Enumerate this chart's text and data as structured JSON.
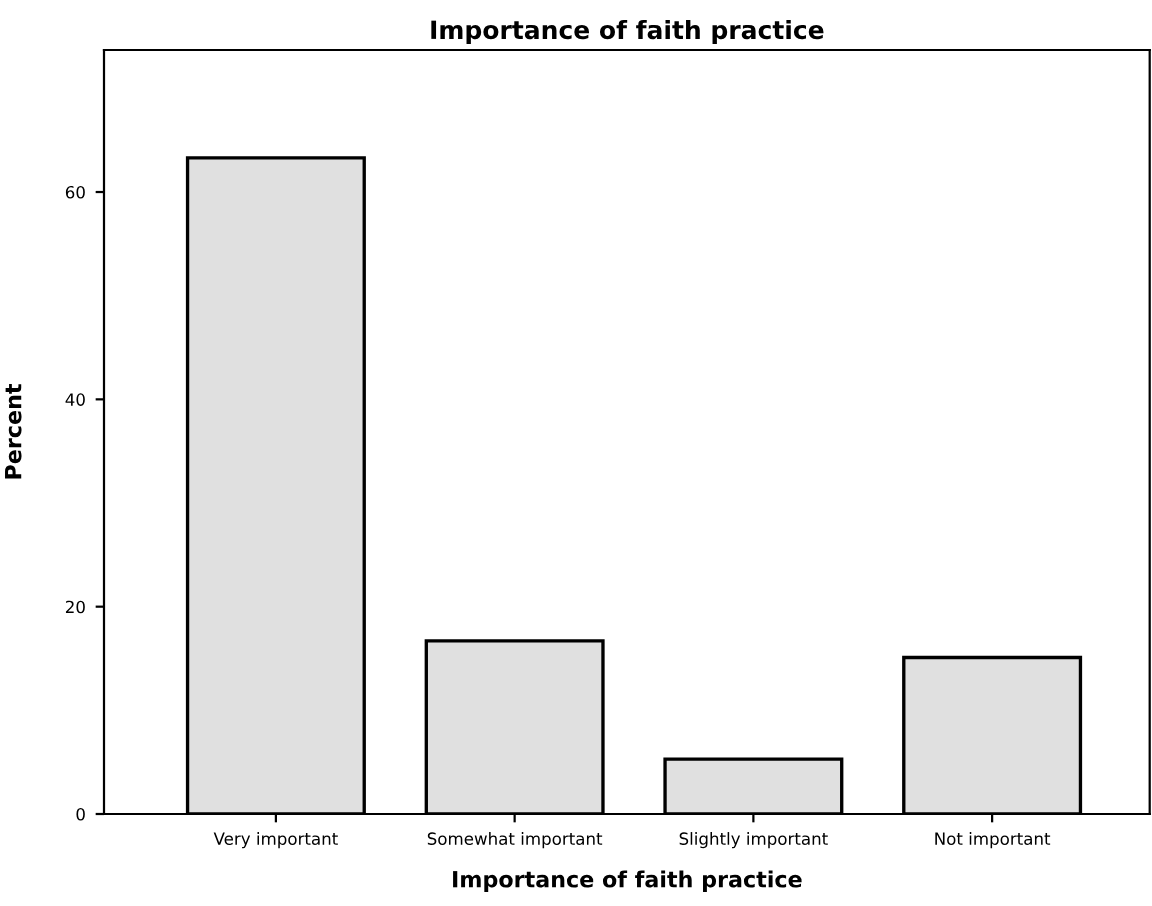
{
  "chart_data": {
    "type": "bar",
    "title": "Importance of faith practice",
    "xlabel": "Importance of faith practice",
    "ylabel": "Percent",
    "categories": [
      "Very important",
      "Somewhat important",
      "Slightly important",
      "Not important"
    ],
    "values": [
      63.3,
      16.7,
      5.3,
      15.1
    ],
    "color": "#e0e0e0",
    "ylim": [
      0,
      73.7
    ],
    "yticks": [
      0,
      20,
      40,
      60
    ],
    "grid": false,
    "legend": false
  }
}
